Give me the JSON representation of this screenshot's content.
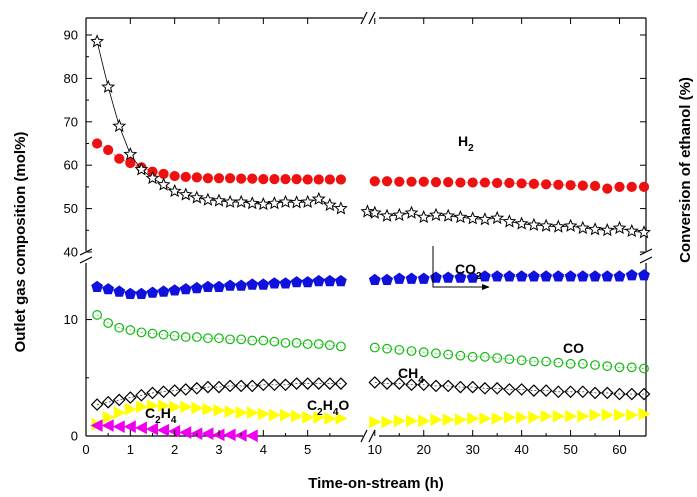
{
  "chart_data": {
    "type": "scatter",
    "title": "",
    "xlabel": "Time-on-stream (h)",
    "ylabel_left": "Outlet gas composition (mol%)",
    "ylabel_right": "Conversion of ethanol (%)",
    "x_segments": [
      {
        "range": [
          0,
          6
        ],
        "ticks": [
          0,
          1,
          2,
          3,
          4,
          5
        ],
        "unit": "h"
      },
      {
        "range": [
          8,
          65
        ],
        "ticks": [
          10,
          20,
          30,
          40,
          50,
          60
        ],
        "unit": "h"
      }
    ],
    "y_segments": [
      {
        "range": [
          0,
          14
        ],
        "ticks": [
          0,
          10
        ]
      },
      {
        "range": [
          40,
          95
        ],
        "ticks": [
          40,
          50,
          60,
          70,
          80,
          90
        ]
      }
    ],
    "annotations": [
      {
        "text": "H",
        "sub": "2",
        "series": "H2"
      },
      {
        "text": "CO",
        "sub": "2",
        "series": "CO2"
      },
      {
        "text": "CO",
        "sub": "",
        "series": "CO"
      },
      {
        "text": "CH",
        "sub": "4",
        "series": "CH4"
      },
      {
        "text": "C",
        "sub": "2",
        "text2": "H",
        "sub2": "4",
        "series": "C2H4"
      },
      {
        "text": "C",
        "sub": "2",
        "text2": "H",
        "sub2": "4",
        "text3": "O",
        "series": "C2H4O"
      }
    ],
    "series": [
      {
        "name": "H2",
        "marker": "circle-filled",
        "color": "#ee1111",
        "x": [
          0.25,
          0.5,
          0.75,
          1.0,
          1.25,
          1.5,
          1.75,
          2.0,
          2.25,
          2.5,
          2.75,
          3.0,
          3.25,
          3.5,
          3.75,
          4.0,
          4.25,
          4.5,
          4.75,
          5.0,
          5.25,
          5.5,
          5.75,
          10,
          12.5,
          15,
          17.5,
          20,
          22.5,
          25,
          27.5,
          30,
          32.5,
          35,
          37.5,
          40,
          42.5,
          45,
          47.5,
          50,
          52.5,
          55,
          57.5,
          60,
          62.5,
          65
        ],
        "y": [
          65,
          63.5,
          61.5,
          60.5,
          59.5,
          58.5,
          58,
          57.5,
          57.3,
          57.2,
          57,
          57,
          57,
          56.9,
          56.9,
          56.8,
          56.8,
          56.8,
          56.8,
          56.7,
          56.7,
          56.7,
          56.7,
          56.3,
          56.3,
          56.2,
          56.2,
          56.2,
          56.1,
          56.1,
          56,
          56,
          56,
          55.9,
          55.9,
          55.8,
          55.7,
          55.6,
          55.5,
          55.4,
          55.3,
          55.2,
          54.6,
          55,
          55,
          55
        ]
      },
      {
        "name": "Conversion of ethanol",
        "marker": "star-open",
        "color": "#000000",
        "x": [
          0.25,
          0.5,
          0.75,
          1.0,
          1.25,
          1.5,
          1.75,
          2.0,
          2.25,
          2.5,
          2.75,
          3.0,
          3.25,
          3.5,
          3.75,
          4.0,
          4.25,
          4.5,
          4.75,
          5.0,
          5.25,
          5.5,
          5.75,
          8.5,
          10,
          12.5,
          15,
          17.5,
          20,
          22.5,
          25,
          27.5,
          30,
          32.5,
          35,
          37.5,
          40,
          42.5,
          45,
          47.5,
          50,
          52.5,
          55,
          57.5,
          60,
          62.5,
          65
        ],
        "y": [
          88.5,
          78,
          69,
          62.5,
          59,
          57,
          55.5,
          54,
          53.2,
          52.5,
          52,
          51.8,
          51.5,
          51.5,
          51.2,
          51,
          51.2,
          51.5,
          51.4,
          51.5,
          52.2,
          50.8,
          50,
          49.3,
          49,
          48.3,
          48.5,
          49,
          48,
          48.5,
          48.3,
          48,
          47.7,
          47.5,
          47.8,
          47,
          46.5,
          46.2,
          46,
          45.8,
          46,
          45.5,
          45.2,
          45,
          45.5,
          44.8,
          44.5
        ]
      },
      {
        "name": "CO2",
        "marker": "pentagon-filled",
        "color": "#1111dd",
        "x": [
          0.25,
          0.5,
          0.75,
          1.0,
          1.25,
          1.5,
          1.75,
          2.0,
          2.25,
          2.5,
          2.75,
          3.0,
          3.25,
          3.5,
          3.75,
          4.0,
          4.25,
          4.5,
          4.75,
          5.0,
          5.25,
          5.5,
          5.75,
          10,
          12.5,
          15,
          17.5,
          20,
          22.5,
          25,
          27.5,
          30,
          32.5,
          35,
          37.5,
          40,
          42.5,
          45,
          47.5,
          50,
          52.5,
          55,
          57.5,
          60,
          62.5,
          65
        ],
        "y": [
          12.8,
          12.6,
          12.4,
          12.2,
          12.2,
          12.3,
          12.4,
          12.5,
          12.6,
          12.7,
          12.8,
          12.8,
          12.9,
          12.9,
          13,
          13,
          13.1,
          13.1,
          13.2,
          13.2,
          13.3,
          13.3,
          13.3,
          13.4,
          13.4,
          13.5,
          13.5,
          13.5,
          13.6,
          13.6,
          13.6,
          13.6,
          13.7,
          13.7,
          13.7,
          13.7,
          13.7,
          13.7,
          13.7,
          13.7,
          13.7,
          13.7,
          13.7,
          13.7,
          13.8,
          13.8
        ]
      },
      {
        "name": "CO",
        "marker": "circle-open",
        "color": "#11bb11",
        "x": [
          0.25,
          0.5,
          0.75,
          1.0,
          1.25,
          1.5,
          1.75,
          2.0,
          2.25,
          2.5,
          2.75,
          3.0,
          3.25,
          3.5,
          3.75,
          4.0,
          4.25,
          4.5,
          4.75,
          5.0,
          5.25,
          5.5,
          5.75,
          10,
          12.5,
          15,
          17.5,
          20,
          22.5,
          25,
          27.5,
          30,
          32.5,
          35,
          37.5,
          40,
          42.5,
          45,
          47.5,
          50,
          52.5,
          55,
          57.5,
          60,
          62.5,
          65
        ],
        "y": [
          10.4,
          9.7,
          9.3,
          9.1,
          8.9,
          8.8,
          8.7,
          8.6,
          8.5,
          8.5,
          8.4,
          8.4,
          8.3,
          8.3,
          8.2,
          8.2,
          8.1,
          8.0,
          8.0,
          7.9,
          7.9,
          7.8,
          7.7,
          7.6,
          7.5,
          7.4,
          7.3,
          7.2,
          7.1,
          7.0,
          6.9,
          6.8,
          6.8,
          6.7,
          6.6,
          6.5,
          6.4,
          6.4,
          6.3,
          6.2,
          6.2,
          6.1,
          6.0,
          5.9,
          5.9,
          5.8
        ]
      },
      {
        "name": "CH4",
        "marker": "diamond-open",
        "color": "#000000",
        "x": [
          0.25,
          0.5,
          0.75,
          1.0,
          1.25,
          1.5,
          1.75,
          2.0,
          2.25,
          2.5,
          2.75,
          3.0,
          3.25,
          3.5,
          3.75,
          4.0,
          4.25,
          4.5,
          4.75,
          5.0,
          5.25,
          5.5,
          5.75,
          10,
          12.5,
          15,
          17.5,
          20,
          22.5,
          25,
          27.5,
          30,
          32.5,
          35,
          37.5,
          40,
          42.5,
          45,
          47.5,
          50,
          52.5,
          55,
          57.5,
          60,
          62.5,
          65
        ],
        "y": [
          2.7,
          2.9,
          3.1,
          3.3,
          3.5,
          3.7,
          3.8,
          3.9,
          4.0,
          4.1,
          4.2,
          4.2,
          4.3,
          4.3,
          4.3,
          4.4,
          4.4,
          4.4,
          4.5,
          4.5,
          4.5,
          4.5,
          4.5,
          4.6,
          4.5,
          4.5,
          4.4,
          4.4,
          4.3,
          4.3,
          4.2,
          4.2,
          4.1,
          4.1,
          4.0,
          4.0,
          3.9,
          3.9,
          3.8,
          3.8,
          3.8,
          3.7,
          3.7,
          3.6,
          3.6,
          3.6
        ]
      },
      {
        "name": "C2H4O",
        "marker": "triangle-right-filled",
        "color": "#ffff00",
        "x": [
          0.25,
          0.5,
          0.75,
          1.0,
          1.25,
          1.5,
          1.75,
          2.0,
          2.25,
          2.5,
          2.75,
          3.0,
          3.25,
          3.5,
          3.75,
          4.0,
          4.25,
          4.5,
          4.75,
          5.0,
          5.25,
          5.5,
          5.75,
          10,
          12.5,
          15,
          17.5,
          20,
          22.5,
          25,
          27.5,
          30,
          32.5,
          35,
          37.5,
          40,
          42.5,
          45,
          47.5,
          50,
          52.5,
          55,
          57.5,
          60,
          62.5,
          65
        ],
        "y": [
          1.0,
          1.6,
          2.0,
          2.3,
          2.5,
          2.6,
          2.6,
          2.5,
          2.5,
          2.4,
          2.3,
          2.2,
          2.1,
          2.0,
          2.0,
          1.9,
          1.8,
          1.8,
          1.7,
          1.6,
          1.6,
          1.5,
          1.5,
          1.2,
          1.2,
          1.3,
          1.3,
          1.3,
          1.4,
          1.4,
          1.4,
          1.5,
          1.5,
          1.5,
          1.6,
          1.6,
          1.6,
          1.7,
          1.7,
          1.7,
          1.7,
          1.8,
          1.8,
          1.8,
          1.8,
          1.9
        ]
      },
      {
        "name": "C2H4",
        "marker": "triangle-left-filled",
        "color": "#ee00ee",
        "x": [
          0.25,
          0.5,
          0.75,
          1.0,
          1.25,
          1.5,
          1.75,
          2.0,
          2.25,
          2.5,
          2.75,
          3.0,
          3.25,
          3.5,
          3.75
        ],
        "y": [
          0.9,
          0.9,
          0.8,
          0.8,
          0.7,
          0.6,
          0.5,
          0.4,
          0.3,
          0.2,
          0.2,
          0.1,
          0.1,
          0.05,
          0.02
        ]
      }
    ]
  }
}
